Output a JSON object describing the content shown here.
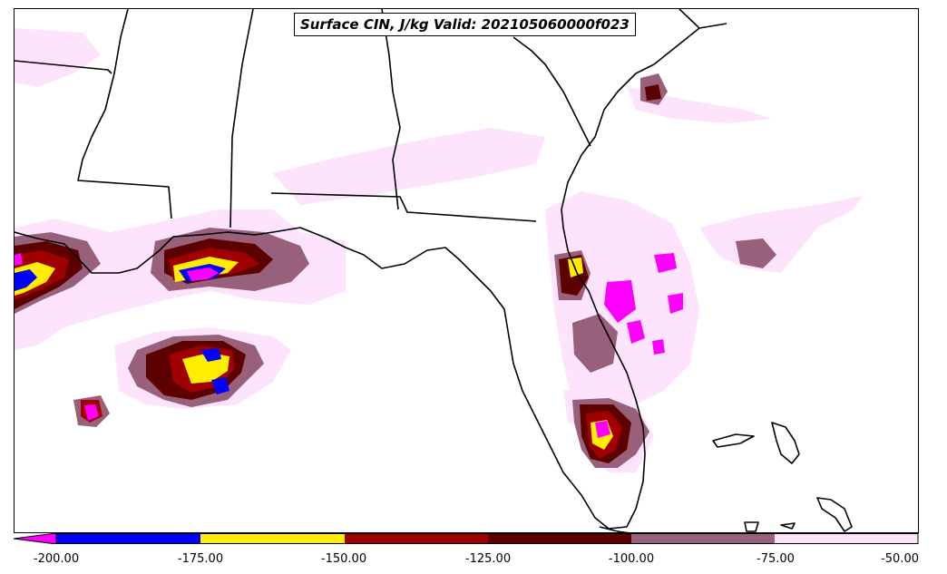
{
  "title": "Surface CIN, J/kg Valid: 202105060000f023",
  "legend": {
    "tick_labels": [
      "-200.00",
      "-175.00",
      "-150.00",
      "-125.00",
      "-100.00",
      "-75.00",
      "-50.00"
    ],
    "colors": [
      "#ff00ff",
      "#0000ff",
      "#ffee00",
      "#a00000",
      "#5c0000",
      "#98607a",
      "#fde4fc"
    ],
    "extend": "min"
  },
  "map": {
    "region": "Southeastern United States and Gulf of Mexico",
    "colors": {
      "magenta": "#ff00ff",
      "blue": "#0000ff",
      "yellow": "#ffee00",
      "red": "#a00000",
      "darkred": "#5c0000",
      "mauve": "#98607a",
      "pale": "#fde4fc",
      "outline": "#000000"
    }
  }
}
